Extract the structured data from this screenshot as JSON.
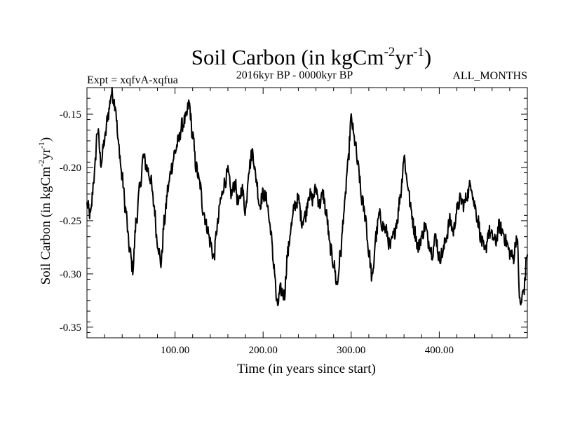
{
  "chart_data": {
    "type": "line",
    "title": {
      "main": "Soil Carbon (in kgCm",
      "sup1": "-2",
      "mid": "yr",
      "sup2": "-1",
      "end": ")"
    },
    "subtitle_left": "Expt = xqfvA-xqfua",
    "subtitle_center": "2016kyr BP - 0000kyr BP",
    "subtitle_right": "ALL_MONTHS",
    "xlabel": "Time (in years since start)",
    "ylabel": {
      "main": "Soil Carbon (in kgCm",
      "sup1": "-2",
      "mid": "yr",
      "sup2": "-1",
      "end": ")"
    },
    "xlim": [
      0,
      500
    ],
    "ylim": [
      -0.36,
      -0.125
    ],
    "x_ticks": [
      {
        "value": 100,
        "label": "100.00"
      },
      {
        "value": 200,
        "label": "200.00"
      },
      {
        "value": 300,
        "label": "300.00"
      },
      {
        "value": 400,
        "label": "400.00"
      }
    ],
    "y_ticks": [
      {
        "value": -0.15,
        "label": "-0.15"
      },
      {
        "value": -0.2,
        "label": "-0.20"
      },
      {
        "value": -0.25,
        "label": "-0.25"
      },
      {
        "value": -0.3,
        "label": "-0.30"
      },
      {
        "value": -0.35,
        "label": "-0.35"
      }
    ],
    "series": [
      {
        "name": "Soil Carbon",
        "color": "#000000",
        "x": [
          0,
          4,
          8,
          12,
          16,
          20,
          24,
          28,
          32,
          36,
          40,
          44,
          48,
          52,
          56,
          60,
          64,
          68,
          72,
          76,
          80,
          84,
          88,
          92,
          96,
          100,
          104,
          108,
          112,
          116,
          120,
          124,
          128,
          132,
          136,
          140,
          144,
          148,
          152,
          156,
          160,
          164,
          168,
          172,
          176,
          180,
          184,
          188,
          192,
          196,
          200,
          204,
          208,
          212,
          216,
          220,
          224,
          228,
          232,
          236,
          240,
          244,
          248,
          252,
          256,
          260,
          264,
          268,
          272,
          276,
          280,
          284,
          288,
          292,
          296,
          300,
          304,
          308,
          312,
          316,
          320,
          324,
          328,
          332,
          336,
          340,
          344,
          348,
          352,
          356,
          360,
          364,
          368,
          372,
          376,
          380,
          384,
          388,
          392,
          396,
          400,
          404,
          408,
          412,
          416,
          420,
          424,
          428,
          432,
          436,
          440,
          444,
          448,
          452,
          456,
          460,
          464,
          468,
          472,
          476,
          480,
          484,
          488,
          492,
          496,
          500
        ],
        "values": [
          -0.235,
          -0.245,
          -0.21,
          -0.165,
          -0.195,
          -0.175,
          -0.15,
          -0.13,
          -0.14,
          -0.18,
          -0.21,
          -0.24,
          -0.275,
          -0.295,
          -0.25,
          -0.22,
          -0.19,
          -0.2,
          -0.21,
          -0.235,
          -0.27,
          -0.29,
          -0.25,
          -0.22,
          -0.2,
          -0.185,
          -0.175,
          -0.16,
          -0.155,
          -0.14,
          -0.17,
          -0.2,
          -0.215,
          -0.24,
          -0.255,
          -0.27,
          -0.285,
          -0.255,
          -0.23,
          -0.215,
          -0.205,
          -0.225,
          -0.215,
          -0.235,
          -0.22,
          -0.24,
          -0.2,
          -0.185,
          -0.21,
          -0.235,
          -0.225,
          -0.23,
          -0.255,
          -0.29,
          -0.33,
          -0.315,
          -0.32,
          -0.28,
          -0.255,
          -0.235,
          -0.23,
          -0.25,
          -0.245,
          -0.225,
          -0.23,
          -0.22,
          -0.235,
          -0.225,
          -0.245,
          -0.275,
          -0.29,
          -0.31,
          -0.28,
          -0.24,
          -0.2,
          -0.155,
          -0.175,
          -0.2,
          -0.23,
          -0.245,
          -0.28,
          -0.305,
          -0.265,
          -0.245,
          -0.255,
          -0.26,
          -0.275,
          -0.265,
          -0.25,
          -0.225,
          -0.19,
          -0.215,
          -0.24,
          -0.26,
          -0.275,
          -0.265,
          -0.255,
          -0.27,
          -0.28,
          -0.265,
          -0.285,
          -0.28,
          -0.265,
          -0.25,
          -0.26,
          -0.24,
          -0.23,
          -0.235,
          -0.225,
          -0.215,
          -0.235,
          -0.25,
          -0.27,
          -0.28,
          -0.26,
          -0.265,
          -0.27,
          -0.255,
          -0.26,
          -0.27,
          -0.28,
          -0.285,
          -0.265,
          -0.33,
          -0.315,
          -0.28
        ],
        "noise_amplitude": 0.007
      }
    ]
  }
}
